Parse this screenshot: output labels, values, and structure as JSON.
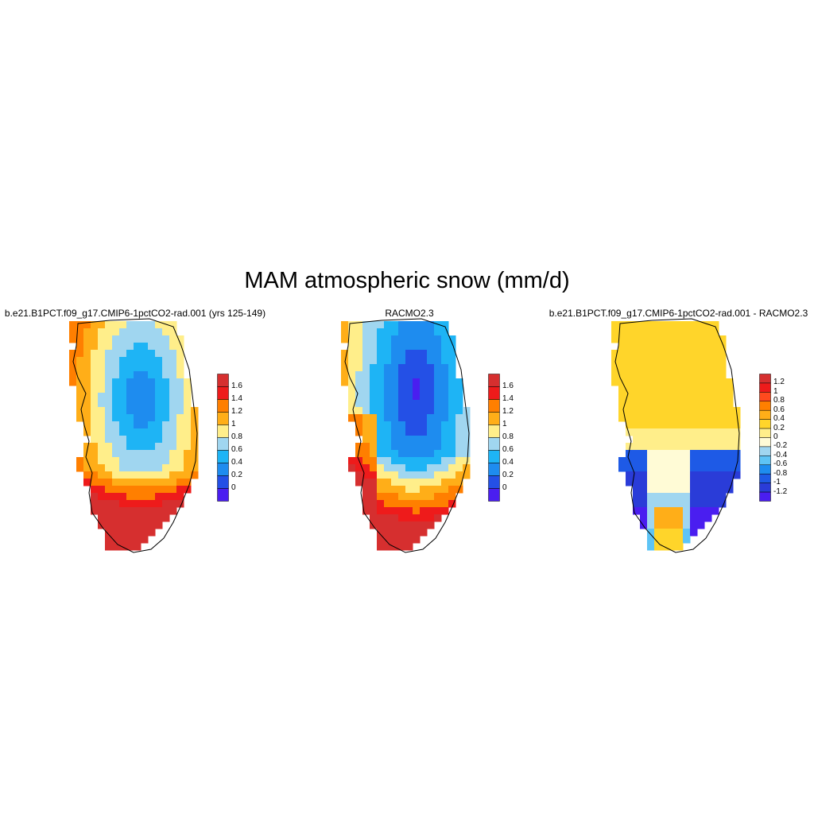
{
  "figure": {
    "title": "MAM atmospheric snow (mm/d)"
  },
  "panels": [
    {
      "title": "b.e21.B1PCT.f09_g17.CMIP6-1pctCO2-rad.001 (yrs 125-149)",
      "colorbar": {
        "labels": [
          "1.6",
          "1.4",
          "1.2",
          "1",
          "0.8",
          "0.6",
          "0.4",
          "0.2",
          "0"
        ],
        "colors": [
          "#d62f2f",
          "#ee1b1b",
          "#ff7f00",
          "#ffae18",
          "#ffee8a",
          "#a0d6f0",
          "#1eb4f5",
          "#1e8cef",
          "#2450e6",
          "#4a1ef0"
        ]
      }
    },
    {
      "title": "RACMO2.3",
      "colorbar": {
        "labels": [
          "1.6",
          "1.4",
          "1.2",
          "1",
          "0.8",
          "0.6",
          "0.4",
          "0.2",
          "0"
        ],
        "colors": [
          "#d62f2f",
          "#ee1b1b",
          "#ff7f00",
          "#ffae18",
          "#ffee8a",
          "#a0d6f0",
          "#1eb4f5",
          "#1e8cef",
          "#2450e6",
          "#4a1ef0"
        ]
      }
    },
    {
      "title": "b.e21.B1PCT.f09_g17.CMIP6-1pctCO2-rad.001 - RACMO2.3",
      "colorbar": {
        "labels": [
          "1.2",
          "1",
          "0.8",
          "0.6",
          "0.4",
          "0.2",
          "0",
          "-0.2",
          "-0.4",
          "-0.6",
          "-0.8",
          "-1",
          "-1.2"
        ],
        "colors": [
          "#d62f2f",
          "#ee1b1b",
          "#ff4a1e",
          "#ff7f00",
          "#ffae18",
          "#ffd52a",
          "#ffee8a",
          "#fffbd6",
          "#a0d6f0",
          "#5ec4f5",
          "#1e8cef",
          "#1e5ae6",
          "#2a3cd8",
          "#4a1ef0"
        ]
      }
    }
  ]
}
